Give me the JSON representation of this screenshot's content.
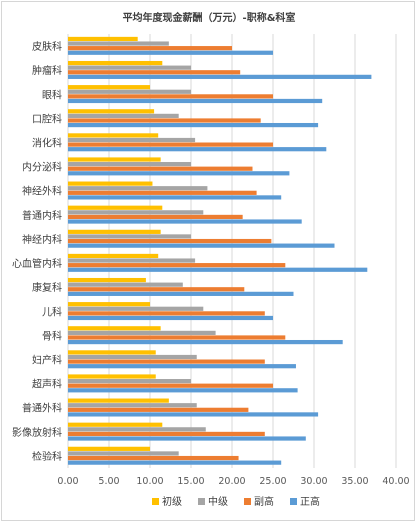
{
  "chart_data": {
    "type": "bar",
    "orientation": "horizontal",
    "title": "平均年度现金薪酬（万元）-职称&科室",
    "categories": [
      "皮肤科",
      "肿瘤科",
      "眼科",
      "口腔科",
      "消化科",
      "内分泌科",
      "神经外科",
      "普通内科",
      "神经内科",
      "心血管内科",
      "康复科",
      "儿科",
      "骨科",
      "妇产科",
      "超声科",
      "普通外科",
      "影像放射科",
      "检验科"
    ],
    "series": [
      {
        "name": "初级",
        "color": "#FFC000",
        "values": [
          8.5,
          11.5,
          10.0,
          10.5,
          11.0,
          11.3,
          10.3,
          11.5,
          11.3,
          11.0,
          9.5,
          10.0,
          11.3,
          10.7,
          10.7,
          12.3,
          11.5,
          10.0
        ]
      },
      {
        "name": "中级",
        "color": "#A5A5A5",
        "values": [
          12.3,
          15.0,
          15.0,
          13.5,
          15.5,
          15.0,
          17.0,
          16.5,
          15.0,
          15.5,
          14.0,
          16.5,
          18.0,
          15.7,
          15.0,
          15.7,
          16.8,
          13.5
        ]
      },
      {
        "name": "副高",
        "color": "#ED7D31",
        "values": [
          20.0,
          21.0,
          25.0,
          23.5,
          25.0,
          22.5,
          23.0,
          21.3,
          24.8,
          26.5,
          21.5,
          24.0,
          26.5,
          24.0,
          25.0,
          22.0,
          24.0,
          20.8
        ]
      },
      {
        "name": "正高",
        "color": "#5B9BD5",
        "values": [
          25.0,
          37.0,
          31.0,
          30.5,
          31.5,
          27.0,
          26.0,
          28.5,
          32.5,
          36.5,
          27.5,
          25.0,
          33.5,
          27.8,
          28.0,
          30.5,
          29.0,
          26.0
        ]
      }
    ],
    "xlim": [
      0,
      40
    ],
    "xticks": [
      "0.00",
      "5.00",
      "10.00",
      "15.00",
      "20.00",
      "25.00",
      "30.00",
      "35.00",
      "40.00"
    ],
    "grid": true,
    "legend": "bottom"
  }
}
